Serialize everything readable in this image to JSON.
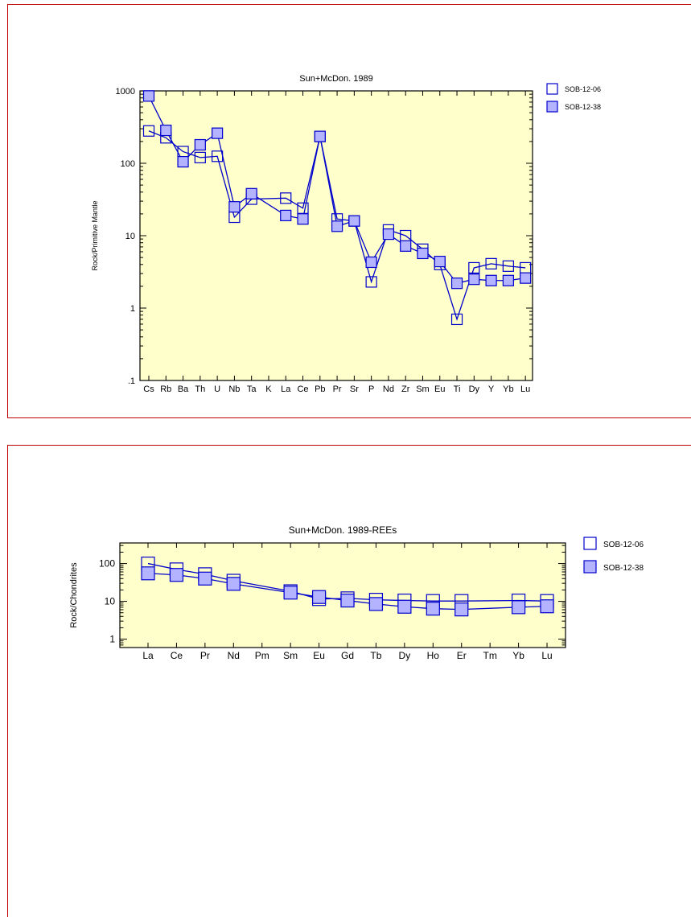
{
  "colors": {
    "plot_bg": "#ffffcc",
    "line": "#0000cc",
    "filled_marker": "#b3b3ff",
    "frame": "#c00000"
  },
  "chart_data": [
    {
      "type": "line",
      "title": "Sun+McDon. 1989",
      "ylabel": "Rock/Primitive Mantle",
      "yscale": "log",
      "ylim": [
        0.1,
        1000
      ],
      "yticks": [
        ".1",
        "1",
        "10",
        "100",
        "1000"
      ],
      "categories": [
        "Cs",
        "Rb",
        "Ba",
        "Th",
        "U",
        "Nb",
        "Ta",
        "K",
        "La",
        "Ce",
        "Pb",
        "Pr",
        "Sr",
        "P",
        "Nd",
        "Zr",
        "Sm",
        "Eu",
        "Ti",
        "Dy",
        "Y",
        "Yb",
        "Lu"
      ],
      "series": [
        {
          "name": "SOB-12-06",
          "marker": "open-square",
          "values": [
            280,
            225,
            145,
            120,
            125,
            18,
            32,
            null,
            33,
            24,
            235,
            17,
            16,
            2.3,
            12,
            10,
            6.5,
            4,
            0.7,
            3.6,
            4.1,
            3.8,
            3.6
          ]
        },
        {
          "name": "SOB-12-38",
          "marker": "filled-square",
          "values": [
            850,
            285,
            105,
            180,
            260,
            25,
            38,
            null,
            19,
            17,
            235,
            13.5,
            16,
            4.3,
            10.5,
            7.2,
            5.7,
            4.4,
            2.2,
            2.5,
            2.4,
            2.4,
            2.6
          ]
        }
      ],
      "legend": "top-right"
    },
    {
      "type": "line",
      "title": "Sun+McDon. 1989-REEs",
      "ylabel": "Rock/Chondrites",
      "yscale": "log",
      "ylim": [
        0.6,
        350
      ],
      "yticks": [
        "1",
        "10",
        "100"
      ],
      "categories": [
        "La",
        "Ce",
        "Pr",
        "Nd",
        "Pm",
        "Sm",
        "Eu",
        "Gd",
        "Tb",
        "Dy",
        "Ho",
        "Er",
        "Tm",
        "Yb",
        "Lu"
      ],
      "series": [
        {
          "name": "SOB-12-06",
          "marker": "open-square",
          "values": [
            100,
            70,
            52,
            35,
            null,
            18.5,
            11.5,
            12,
            11,
            10.5,
            10.2,
            10.2,
            null,
            10.5,
            10.2
          ]
        },
        {
          "name": "SOB-12-38",
          "marker": "filled-square",
          "values": [
            55,
            50,
            40,
            29,
            null,
            17,
            13,
            10.5,
            8.5,
            7.2,
            6.4,
            6.1,
            null,
            7,
            7.4
          ]
        }
      ],
      "legend": "top-right"
    }
  ]
}
